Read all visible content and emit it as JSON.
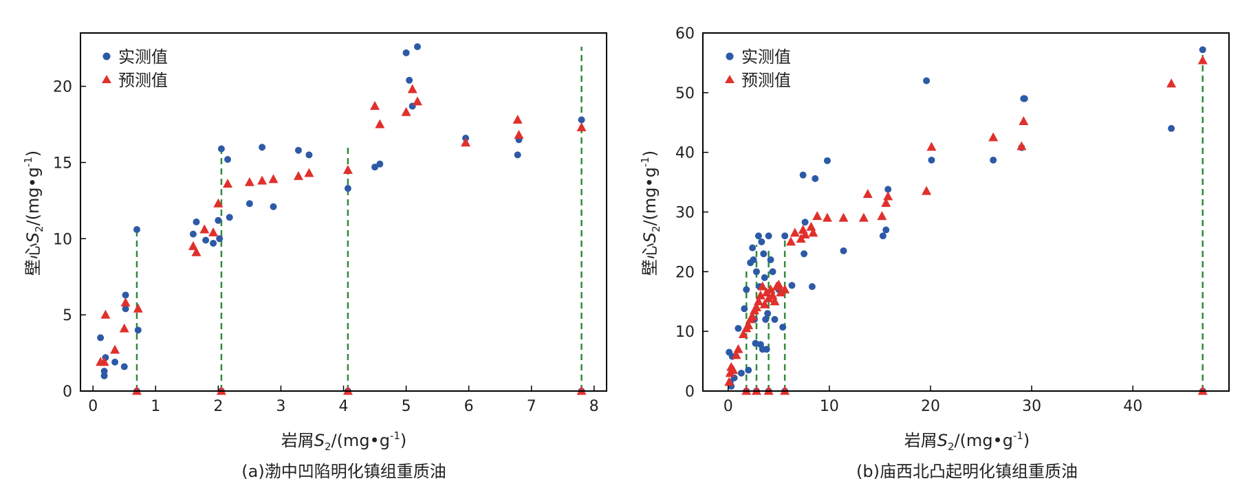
{
  "colors": {
    "actual": "#2d5aa6",
    "predicted": "#e0302c",
    "dropline": "#2e8b3a",
    "frame": "#000000"
  },
  "legend": {
    "actual": "实测值",
    "predicted": "预测值"
  },
  "axis_text": {
    "y_prefix": "壁心",
    "y_var": "S",
    "y_sub": "2",
    "y_unit": "/(mg•g",
    "y_exp": "-1",
    "y_close": ")",
    "x_prefix": "岩屑",
    "x_var": "S",
    "x_sub": "2",
    "x_unit": "/(mg•g",
    "x_exp": "-1",
    "x_close": ")"
  },
  "chart_data": [
    {
      "type": "scatter",
      "caption": "(a)渤中凹陷明化镇组重质油",
      "xlim": [
        -0.2,
        8.2
      ],
      "ylim": [
        0,
        23.5
      ],
      "xticks": [
        0,
        1,
        2,
        3,
        4,
        5,
        6,
        7,
        8
      ],
      "yticks": [
        0,
        5,
        10,
        15,
        20
      ],
      "legend_position": "top-left",
      "series": [
        {
          "name": "实测值",
          "marker": "circle",
          "x": [
            0.12,
            0.18,
            0.18,
            0.2,
            0.35,
            0.5,
            0.52,
            0.52,
            0.7,
            0.72,
            1.6,
            1.65,
            1.8,
            1.92,
            2.0,
            2.02,
            2.05,
            2.15,
            2.18,
            2.5,
            2.7,
            2.88,
            3.28,
            3.45,
            4.07,
            4.5,
            4.58,
            5.0,
            5.05,
            5.1,
            5.18,
            5.95,
            6.78,
            6.8,
            7.8
          ],
          "y": [
            3.5,
            1.3,
            1.0,
            2.2,
            1.9,
            1.6,
            5.4,
            6.3,
            10.6,
            4.0,
            10.3,
            11.1,
            9.9,
            9.7,
            11.2,
            10.0,
            15.9,
            15.2,
            11.4,
            12.3,
            16.0,
            12.1,
            15.8,
            15.5,
            13.3,
            14.7,
            14.9,
            22.2,
            20.4,
            18.7,
            22.6,
            16.6,
            15.5,
            16.5,
            17.8
          ]
        },
        {
          "name": "预测值",
          "marker": "triangle",
          "x": [
            0.12,
            0.18,
            0.2,
            0.35,
            0.5,
            0.52,
            0.72,
            1.6,
            1.65,
            1.78,
            1.92,
            2.0,
            2.15,
            2.5,
            2.7,
            2.88,
            3.28,
            3.45,
            4.07,
            4.5,
            4.58,
            5.0,
            5.1,
            5.18,
            5.95,
            6.78,
            6.8,
            7.8
          ],
          "y": [
            1.9,
            1.9,
            5.0,
            2.7,
            4.1,
            5.8,
            5.4,
            9.5,
            9.1,
            10.6,
            10.4,
            12.3,
            13.6,
            13.7,
            13.8,
            13.9,
            14.1,
            14.3,
            14.5,
            18.7,
            17.5,
            18.3,
            19.8,
            19.0,
            16.3,
            17.8,
            16.8,
            17.3
          ]
        }
      ],
      "droplines": [
        {
          "x": 0.7,
          "top": 10.6
        },
        {
          "x": 2.05,
          "top": 15.9
        },
        {
          "x": 4.07,
          "top": 16.1
        },
        {
          "x": 7.8,
          "top": 22.6
        }
      ]
    },
    {
      "type": "scatter",
      "caption": "(b)庙西北凸起明化镇组重质油",
      "xlim": [
        -2.5,
        49.5
      ],
      "ylim": [
        0,
        60
      ],
      "xticks": [
        0,
        10,
        20,
        30,
        40
      ],
      "yticks": [
        0,
        10,
        20,
        30,
        40,
        50,
        60
      ],
      "legend_position": "top-left",
      "series": [
        {
          "name": "实测值",
          "marker": "circle",
          "x": [
            0.1,
            0.2,
            0.3,
            0.4,
            0.6,
            1.0,
            1.3,
            1.6,
            1.8,
            2.0,
            2.2,
            2.4,
            2.5,
            2.6,
            2.7,
            2.8,
            3.0,
            3.1,
            3.2,
            3.3,
            3.4,
            3.5,
            3.6,
            3.7,
            3.8,
            3.9,
            4.0,
            4.2,
            4.4,
            4.6,
            5.0,
            5.4,
            5.6,
            6.3,
            7.4,
            7.5,
            7.6,
            8.3,
            8.6,
            9.8,
            11.4,
            15.3,
            15.6,
            15.8,
            19.6,
            20.1,
            26.2,
            29.0,
            29.2,
            29.3,
            43.8,
            46.9
          ],
          "y": [
            6.5,
            1.5,
            0.8,
            5.8,
            2.2,
            10.5,
            3.0,
            13.8,
            17.0,
            3.5,
            21.5,
            24.0,
            22.0,
            12.0,
            8.0,
            20.0,
            26.0,
            17.5,
            7.8,
            25.0,
            7.0,
            23.0,
            19.0,
            12.0,
            7.0,
            13.0,
            26.0,
            22.0,
            20.0,
            12.0,
            17.0,
            10.7,
            26.0,
            17.7,
            36.2,
            23.0,
            28.3,
            17.5,
            35.6,
            38.6,
            23.5,
            26.0,
            27.0,
            33.8,
            52.0,
            38.7,
            38.7,
            40.8,
            49.0,
            49.0,
            44.0,
            57.2
          ]
        },
        {
          "name": "预测值",
          "marker": "triangle",
          "x": [
            0.1,
            0.2,
            0.3,
            0.5,
            0.8,
            1.0,
            1.5,
            1.8,
            2.0,
            2.2,
            2.4,
            2.6,
            2.8,
            3.0,
            3.2,
            3.4,
            3.6,
            3.8,
            4.0,
            4.2,
            4.4,
            4.6,
            4.8,
            5.0,
            5.2,
            5.6,
            6.2,
            6.6,
            7.2,
            7.4,
            7.6,
            8.2,
            8.4,
            8.8,
            9.8,
            11.4,
            13.4,
            13.8,
            15.2,
            15.6,
            15.8,
            19.6,
            20.1,
            26.2,
            29.0,
            29.2,
            43.8,
            46.9
          ],
          "y": [
            1.5,
            3.0,
            4.0,
            3.5,
            6.0,
            7.0,
            9.5,
            10.5,
            11.0,
            12.0,
            12.5,
            13.5,
            14.0,
            15.0,
            16.0,
            17.5,
            14.5,
            16.5,
            15.5,
            17.0,
            16.0,
            15.0,
            17.5,
            17.8,
            16.5,
            17.0,
            25.0,
            26.5,
            25.5,
            27.0,
            26.2,
            27.5,
            26.5,
            29.3,
            29.0,
            29.0,
            29.0,
            33.0,
            29.3,
            31.5,
            32.6,
            33.5,
            40.9,
            42.5,
            41.0,
            45.2,
            51.5,
            55.4
          ]
        }
      ],
      "droplines": [
        {
          "x": 1.8,
          "top": 20.5
        },
        {
          "x": 2.8,
          "top": 24.5
        },
        {
          "x": 4.0,
          "top": 24.0
        },
        {
          "x": 5.6,
          "top": 25.5
        },
        {
          "x": 46.9,
          "top": 57.2
        }
      ]
    }
  ]
}
